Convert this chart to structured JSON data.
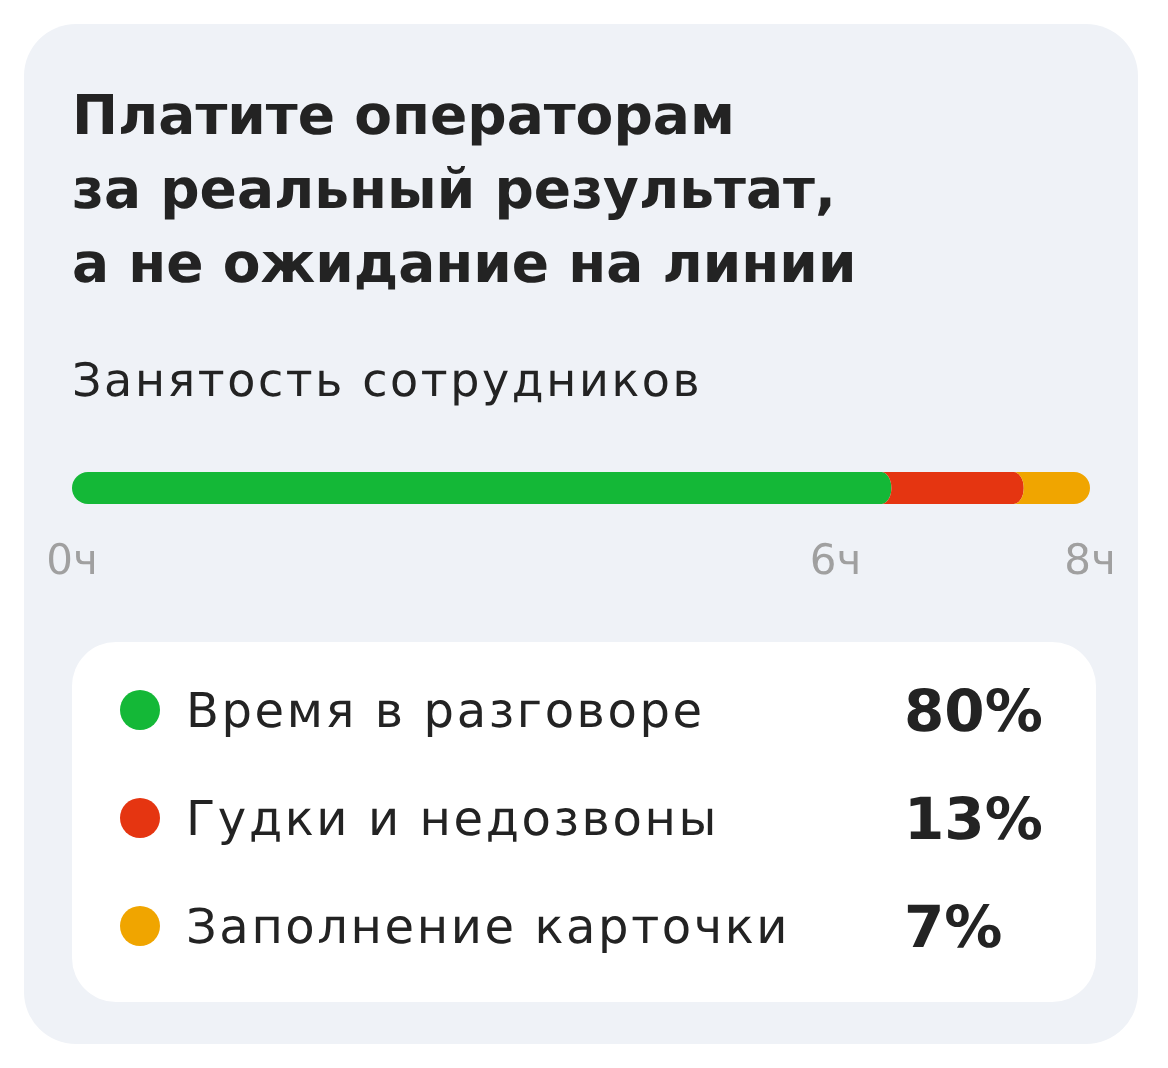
{
  "chart_data": {
    "type": "bar",
    "title": "Платите операторам\nза реальный результат,\nа не ожидание на линии",
    "subtitle": "Занятость сотрудников",
    "orientation": "horizontal",
    "stacked": true,
    "categories": [
      null
    ],
    "xlim": [
      0,
      8
    ],
    "xticks": [
      {
        "value": 0,
        "label": "0ч"
      },
      {
        "value": 6,
        "label": "6ч"
      },
      {
        "value": 8,
        "label": "8ч"
      }
    ],
    "legend": "bottom",
    "series": [
      {
        "name": "Время в разговоре",
        "color": "#14b837",
        "values": [
          6.4
        ]
      },
      {
        "name": "Гудки и недозвоны",
        "color": "#e53511",
        "values": [
          1.04
        ]
      },
      {
        "name": "Заполнение карточки",
        "color": "#f0a500",
        "values": [
          0.56
        ]
      }
    ],
    "annotations": [
      "80%",
      "13%",
      "7%"
    ]
  }
}
